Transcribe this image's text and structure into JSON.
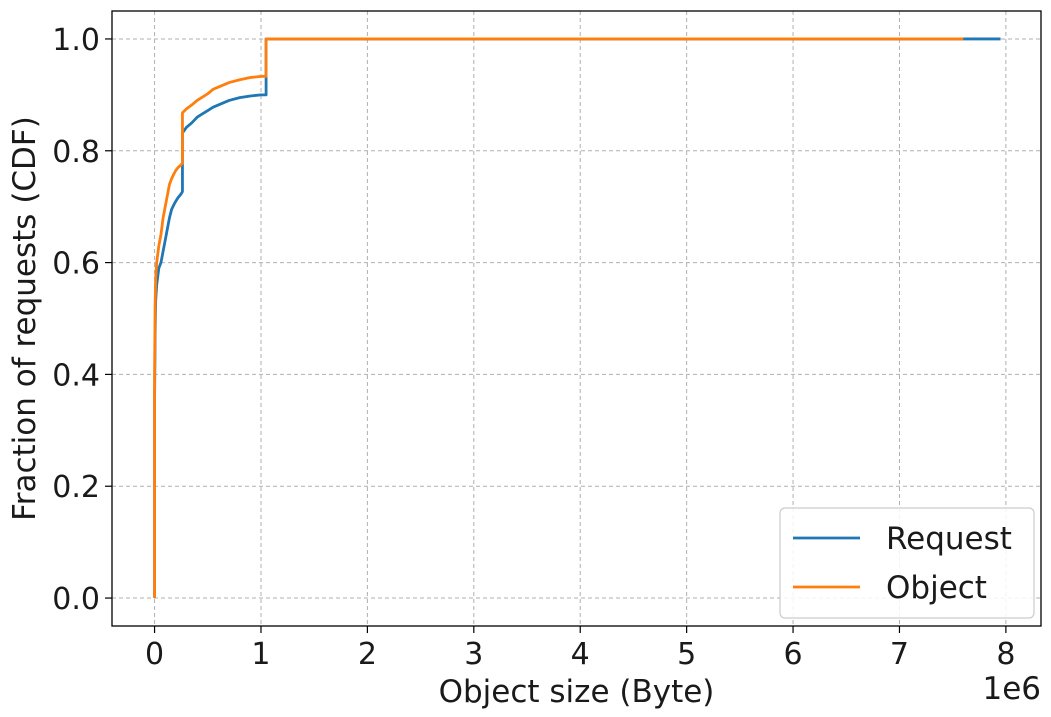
{
  "chart_data": {
    "type": "line",
    "title": "",
    "xlabel": "Object size (Byte)",
    "ylabel": "Fraction of requests (CDF)",
    "x_offset_label": "1e6",
    "xlim": [
      -0.4,
      8.33
    ],
    "ylim": [
      -0.05,
      1.05
    ],
    "x_ticks": [
      0,
      1,
      2,
      3,
      4,
      5,
      6,
      7,
      8
    ],
    "x_tick_labels": [
      "0",
      "1",
      "2",
      "3",
      "4",
      "5",
      "6",
      "7",
      "8"
    ],
    "y_ticks": [
      0.0,
      0.2,
      0.4,
      0.6,
      0.8,
      1.0
    ],
    "y_tick_labels": [
      "0.0",
      "0.2",
      "0.4",
      "0.6",
      "0.8",
      "1.0"
    ],
    "grid": true,
    "legend_position": "bottom-right",
    "series": [
      {
        "name": "Request",
        "color": "#1f77b4",
        "x": [
          0.0,
          0.0,
          0.005,
          0.01,
          0.02,
          0.04,
          0.06,
          0.08,
          0.1,
          0.12,
          0.14,
          0.16,
          0.18,
          0.2,
          0.22,
          0.25,
          0.262,
          0.262,
          0.3,
          0.35,
          0.4,
          0.45,
          0.5,
          0.55,
          0.6,
          0.7,
          0.8,
          0.9,
          1.0,
          1.048,
          1.048,
          1.2,
          2.0,
          4.0,
          6.0,
          7.6,
          7.95
        ],
        "y": [
          0.0,
          0.35,
          0.47,
          0.53,
          0.56,
          0.59,
          0.6,
          0.62,
          0.64,
          0.66,
          0.68,
          0.695,
          0.703,
          0.71,
          0.716,
          0.723,
          0.727,
          0.832,
          0.842,
          0.85,
          0.86,
          0.866,
          0.872,
          0.878,
          0.882,
          0.89,
          0.895,
          0.898,
          0.9,
          0.9,
          1.0,
          1.0,
          1.0,
          1.0,
          1.0,
          1.0,
          1.0
        ]
      },
      {
        "name": "Object",
        "color": "#ff7f0e",
        "x": [
          0.0,
          0.0,
          0.005,
          0.01,
          0.02,
          0.04,
          0.06,
          0.08,
          0.1,
          0.12,
          0.14,
          0.16,
          0.18,
          0.2,
          0.22,
          0.25,
          0.262,
          0.262,
          0.3,
          0.35,
          0.4,
          0.45,
          0.5,
          0.55,
          0.6,
          0.7,
          0.8,
          0.9,
          1.0,
          1.048,
          1.048,
          1.2,
          2.0,
          4.0,
          6.0,
          7.6
        ],
        "y": [
          0.0,
          0.4,
          0.52,
          0.57,
          0.6,
          0.63,
          0.65,
          0.68,
          0.7,
          0.72,
          0.74,
          0.75,
          0.758,
          0.765,
          0.77,
          0.775,
          0.778,
          0.868,
          0.875,
          0.882,
          0.89,
          0.896,
          0.902,
          0.91,
          0.914,
          0.922,
          0.927,
          0.931,
          0.933,
          0.933,
          1.0,
          1.0,
          1.0,
          1.0,
          1.0,
          1.0
        ]
      }
    ]
  }
}
